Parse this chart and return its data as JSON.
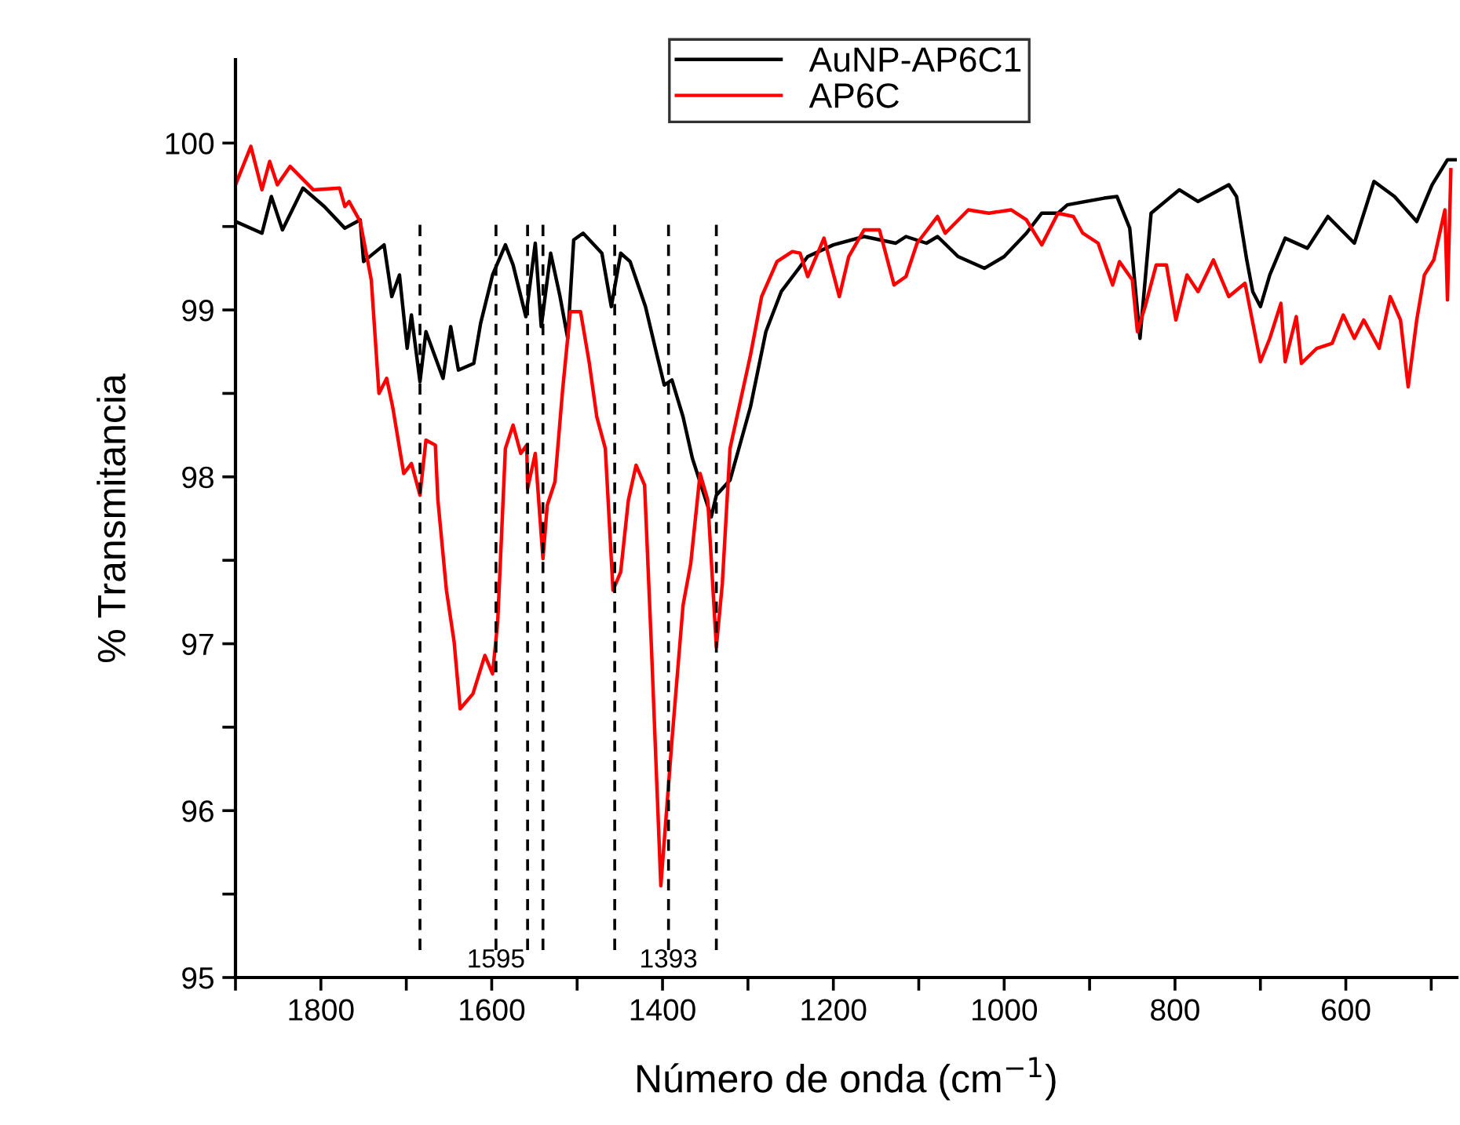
{
  "chart_data": {
    "type": "line",
    "xlabel": "Número de onda (cm$^{−1}$)",
    "ylabel": "% Transmitancia",
    "xlim": [
      1900,
      470
    ],
    "ylim": [
      95,
      100.5
    ],
    "xticks": [
      {
        "value": 1900,
        "label": null
      },
      1800,
      {
        "value": 1700,
        "label": null
      },
      1600,
      {
        "value": 1500,
        "label": null
      },
      1400,
      {
        "value": 1300,
        "label": null
      },
      1200,
      {
        "value": 1100,
        "label": null
      },
      1000,
      {
        "value": 900,
        "label": null
      },
      800,
      {
        "value": 700,
        "label": null
      },
      600,
      {
        "value": 500,
        "label": null
      }
    ],
    "yticks": [
      95,
      {
        "value": 95.5,
        "label": null
      },
      96,
      {
        "value": 96.5,
        "label": null
      },
      97,
      {
        "value": 97.5,
        "label": null
      },
      98,
      {
        "value": 98.5,
        "label": null
      },
      99,
      {
        "value": 99.5,
        "label": null
      },
      100
    ],
    "grid": false,
    "legend": "top",
    "marker": "none",
    "line_style": "solid",
    "series": [
      {
        "name": "AuNP-AP6C1",
        "color": "#000000",
        "x": [
          1900,
          1869,
          1858,
          1845,
          1821,
          1796,
          1772,
          1754,
          1750,
          1726,
          1717,
          1708,
          1699,
          1694,
          1684,
          1677,
          1657,
          1648,
          1639,
          1621,
          1613,
          1599,
          1584,
          1575,
          1560,
          1549,
          1542,
          1531,
          1520,
          1511,
          1504,
          1493,
          1471,
          1460,
          1449,
          1438,
          1420,
          1407,
          1398,
          1389,
          1376,
          1365,
          1343,
          1337,
          1321,
          1297,
          1279,
          1261,
          1230,
          1200,
          1164,
          1127,
          1115,
          1091,
          1078,
          1054,
          1023,
          1000,
          974,
          956,
          937,
          926,
          883,
          868,
          853,
          841,
          828,
          795,
          773,
          737,
          728,
          716,
          709,
          700,
          689,
          671,
          645,
          621,
          590,
          567,
          543,
          517,
          499,
          481,
          471
        ],
        "values": [
          99.53,
          99.46,
          99.68,
          99.48,
          99.73,
          99.62,
          99.49,
          99.54,
          99.29,
          99.39,
          99.08,
          99.21,
          98.77,
          98.97,
          98.57,
          98.87,
          98.59,
          98.9,
          98.64,
          98.68,
          98.92,
          99.21,
          99.39,
          99.27,
          98.96,
          99.4,
          98.9,
          99.34,
          99.08,
          98.83,
          99.42,
          99.46,
          99.34,
          99.02,
          99.34,
          99.29,
          99.02,
          98.74,
          98.55,
          98.58,
          98.36,
          98.11,
          97.76,
          97.89,
          97.98,
          98.42,
          98.87,
          99.11,
          99.32,
          99.39,
          99.44,
          99.4,
          99.44,
          99.4,
          99.44,
          99.32,
          99.25,
          99.32,
          99.46,
          99.58,
          99.58,
          99.63,
          99.67,
          99.68,
          99.49,
          98.83,
          99.58,
          99.72,
          99.65,
          99.75,
          99.68,
          99.3,
          99.11,
          99.02,
          99.21,
          99.43,
          99.37,
          99.56,
          99.4,
          99.77,
          99.68,
          99.53,
          99.75,
          99.9,
          99.9
        ]
      },
      {
        "name": "AP6C",
        "color": "#ff0000",
        "x": [
          1900,
          1882,
          1869,
          1860,
          1851,
          1836,
          1809,
          1778,
          1772,
          1767,
          1754,
          1741,
          1732,
          1723,
          1716,
          1703,
          1694,
          1684,
          1677,
          1666,
          1663,
          1653,
          1644,
          1637,
          1622,
          1608,
          1599,
          1593,
          1584,
          1575,
          1566,
          1559,
          1558,
          1549,
          1540,
          1535,
          1526,
          1517,
          1508,
          1496,
          1486,
          1477,
          1467,
          1458,
          1449,
          1440,
          1431,
          1421,
          1413,
          1402,
          1389,
          1376,
          1367,
          1356,
          1347,
          1337,
          1330,
          1321,
          1297,
          1284,
          1266,
          1248,
          1239,
          1230,
          1211,
          1193,
          1182,
          1164,
          1146,
          1129,
          1115,
          1102,
          1078,
          1069,
          1042,
          1018,
          992,
          974,
          956,
          937,
          919,
          908,
          890,
          873,
          865,
          850,
          844,
          835,
          822,
          810,
          799,
          786,
          773,
          755,
          737,
          718,
          700,
          689,
          676,
          671,
          658,
          652,
          634,
          616,
          603,
          590,
          579,
          561,
          548,
          536,
          527,
          517,
          508,
          497,
          484,
          481,
          477
        ],
        "values": [
          99.75,
          99.98,
          99.72,
          99.89,
          99.75,
          99.86,
          99.72,
          99.73,
          99.62,
          99.65,
          99.53,
          99.18,
          98.5,
          98.59,
          98.42,
          98.02,
          98.08,
          97.89,
          98.22,
          98.19,
          97.86,
          97.32,
          97.01,
          96.61,
          96.7,
          96.93,
          96.82,
          97.13,
          98.17,
          98.31,
          98.14,
          98.19,
          97.93,
          98.14,
          97.51,
          97.83,
          97.97,
          98.52,
          98.99,
          98.99,
          98.69,
          98.36,
          98.17,
          97.32,
          97.43,
          97.86,
          98.07,
          97.95,
          96.98,
          95.55,
          96.42,
          97.23,
          97.48,
          98.02,
          97.86,
          96.98,
          97.36,
          98.17,
          98.73,
          99.08,
          99.29,
          99.35,
          99.34,
          99.2,
          99.43,
          99.08,
          99.32,
          99.48,
          99.48,
          99.15,
          99.2,
          99.4,
          99.56,
          99.46,
          99.6,
          99.58,
          99.6,
          99.54,
          99.39,
          99.58,
          99.56,
          99.46,
          99.4,
          99.15,
          99.29,
          99.18,
          98.87,
          99.02,
          99.27,
          99.27,
          98.94,
          99.21,
          99.11,
          99.3,
          99.08,
          99.16,
          98.69,
          98.83,
          99.04,
          98.69,
          98.96,
          98.68,
          98.77,
          98.8,
          98.97,
          98.83,
          98.94,
          98.77,
          99.08,
          98.94,
          98.54,
          98.94,
          99.21,
          99.3,
          99.6,
          99.06,
          99.84
        ]
      }
    ],
    "ref_lines": [
      {
        "axis": "x",
        "value": 1684,
        "label": null,
        "color": "#000000",
        "line_style": "dashed"
      },
      {
        "axis": "x",
        "value": 1595,
        "label": "1595",
        "color": "#000000",
        "line_style": "dashed"
      },
      {
        "axis": "x",
        "value": 1558,
        "label": null,
        "color": "#000000",
        "line_style": "dashed"
      },
      {
        "axis": "x",
        "value": 1540,
        "label": null,
        "color": "#000000",
        "line_style": "dashed"
      },
      {
        "axis": "x",
        "value": 1456,
        "label": null,
        "color": "#000000",
        "line_style": "dashed"
      },
      {
        "axis": "x",
        "value": 1393,
        "label": "1393",
        "color": "#000000",
        "line_style": "dashed"
      },
      {
        "axis": "x",
        "value": 1337,
        "label": null,
        "color": "#000000",
        "line_style": "dashed"
      }
    ]
  }
}
